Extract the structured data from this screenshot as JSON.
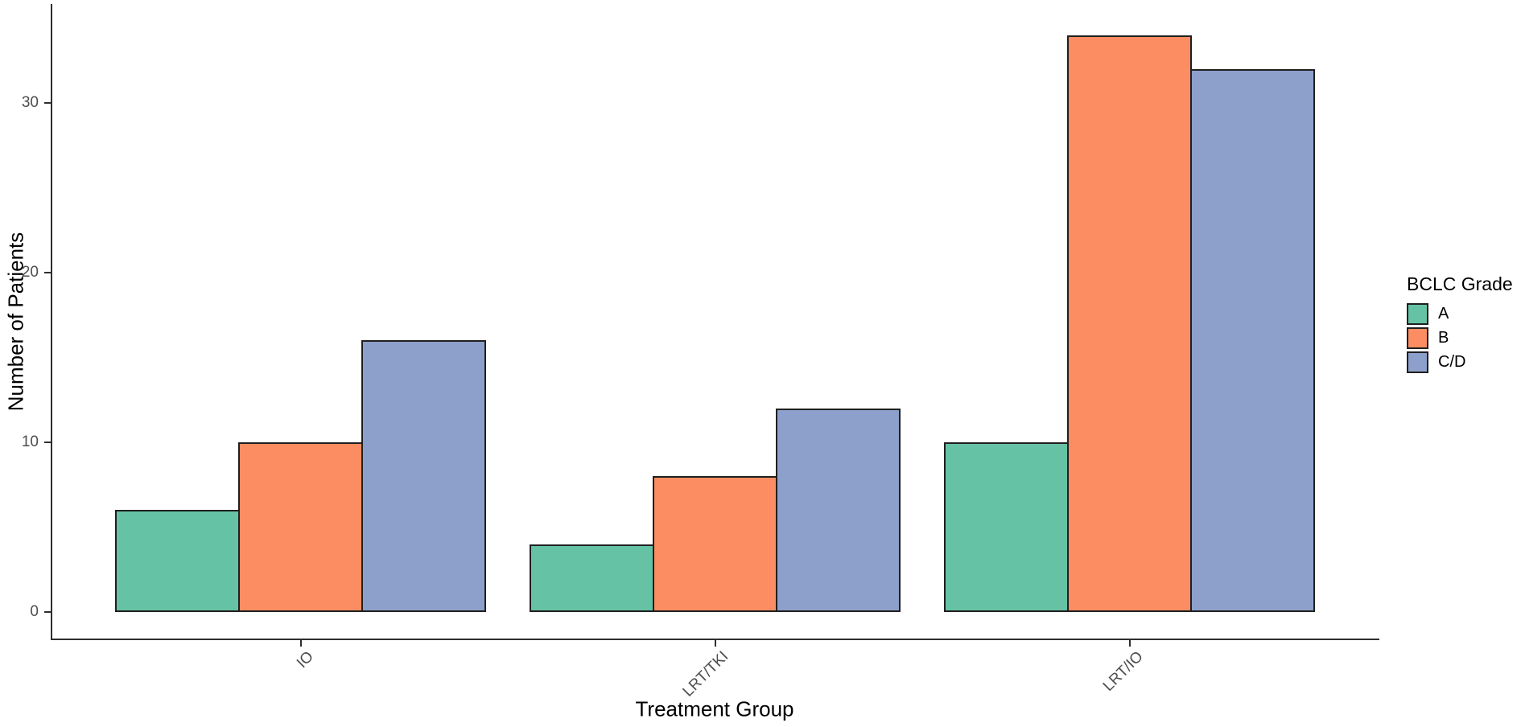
{
  "chart_data": {
    "type": "bar",
    "title": "",
    "xlabel": "Treatment Group",
    "ylabel": "Number of Patients",
    "categories": [
      "IO",
      "LRT/TKI",
      "LRT/IO"
    ],
    "series": [
      {
        "name": "A",
        "color": "#66C2A5",
        "values": [
          6,
          4,
          10
        ]
      },
      {
        "name": "B",
        "color": "#FC8D62",
        "values": [
          10,
          8,
          34
        ]
      },
      {
        "name": "C/D",
        "color": "#8DA0CB",
        "values": [
          16,
          12,
          32
        ]
      }
    ],
    "legend_title": "BCLC Grade",
    "legend_position": "right",
    "yticks": [
      0,
      10,
      20,
      30
    ],
    "ylim": [
      0,
      35.7
    ],
    "grid": false,
    "bar_outline_color": "#1f1f1f",
    "axis_color": "#2e2e2e",
    "tick_label_color": "#4d4d4d",
    "axis_title_color": "#000000"
  }
}
